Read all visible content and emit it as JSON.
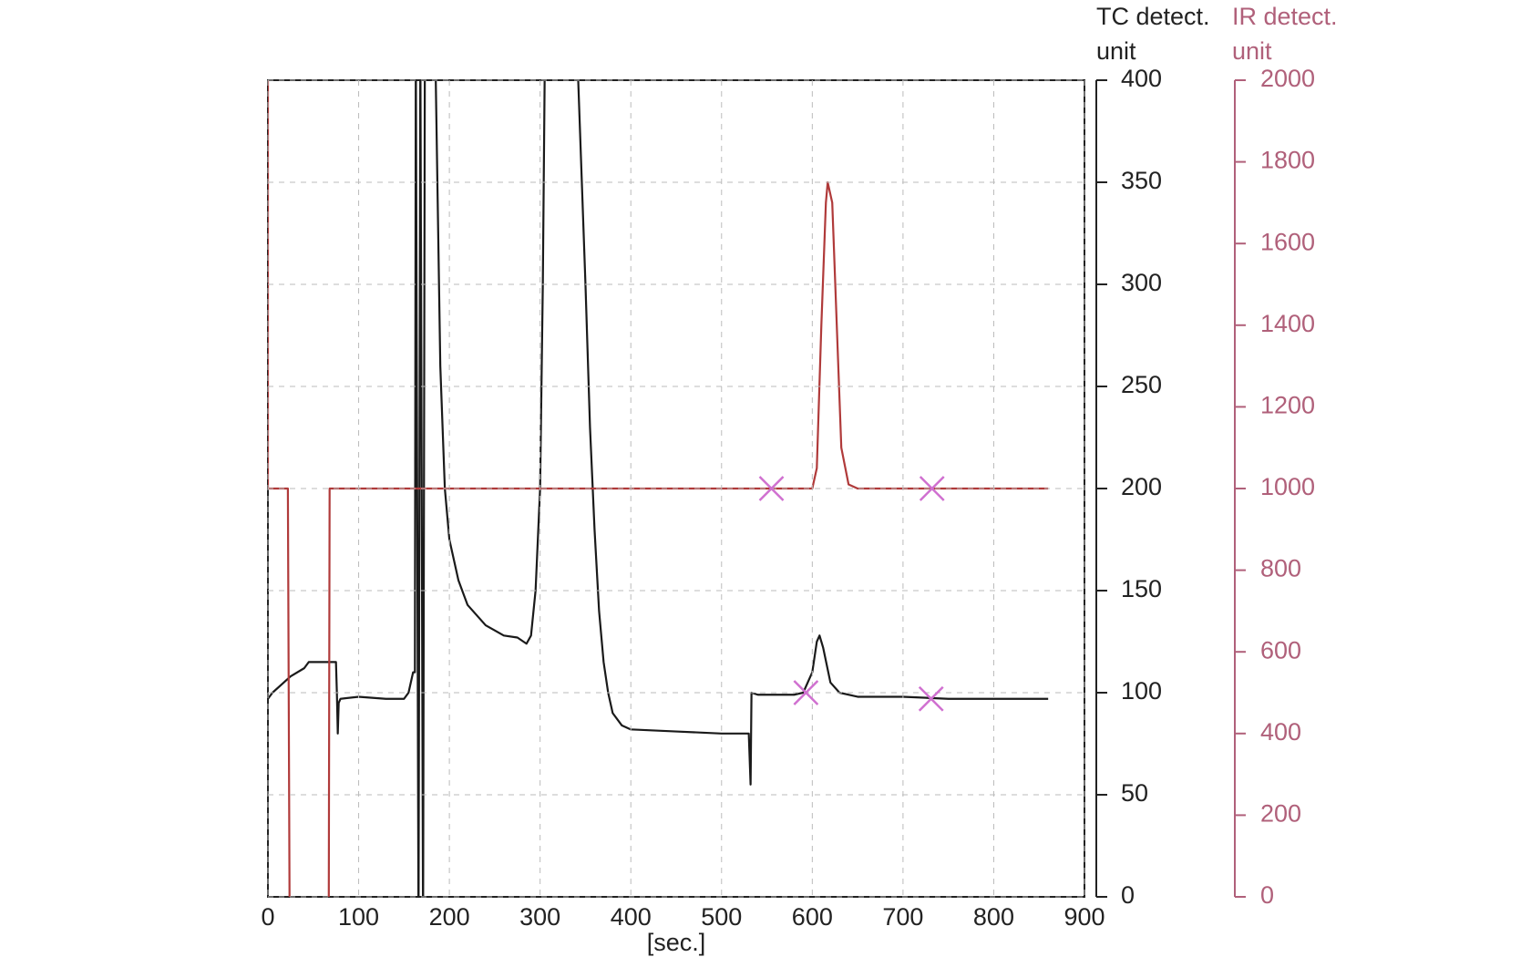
{
  "chart_data": {
    "type": "line",
    "ylabel": [
      "TC detect.",
      "unit"
    ],
    "y2label": [
      "IR detect.",
      "unit"
    ],
    "xlabel": "[sec.]",
    "xlim": [
      0,
      900
    ],
    "xticks": [
      0,
      100,
      200,
      300,
      400,
      500,
      600,
      700,
      800,
      900
    ],
    "ylim": [
      0,
      400
    ],
    "yticks": [
      0,
      50,
      100,
      150,
      200,
      250,
      300,
      350,
      400
    ],
    "y2lim": [
      0,
      2000
    ],
    "y2ticks": [
      0,
      200,
      400,
      600,
      800,
      1000,
      1200,
      1400,
      1600,
      1800,
      2000
    ],
    "grid": true,
    "series": [
      {
        "color": "#1a1a1a",
        "axis": "y",
        "x": [
          0,
          5,
          15,
          25,
          40,
          45,
          75,
          76,
          77,
          78,
          80,
          100,
          130,
          150,
          155,
          160,
          162,
          163,
          166,
          168,
          171,
          173,
          176,
          185,
          190,
          195,
          200,
          210,
          220,
          240,
          260,
          275,
          285,
          290,
          295,
          300,
          303,
          305,
          310,
          340,
          342,
          350,
          355,
          360,
          365,
          370,
          375,
          380,
          390,
          400,
          450,
          500,
          530,
          532,
          533,
          540,
          580,
          590,
          600,
          605,
          608,
          612,
          620,
          630,
          650,
          700,
          750,
          860
        ],
        "values": [
          97,
          100,
          104,
          108,
          112,
          115,
          115,
          100,
          80,
          95,
          97,
          98,
          97,
          97,
          100,
          110,
          110,
          420,
          -20,
          420,
          -20,
          420,
          420,
          400,
          260,
          200,
          175,
          155,
          143,
          133,
          128,
          127,
          124,
          128,
          150,
          200,
          300,
          400,
          420,
          420,
          400,
          300,
          230,
          180,
          140,
          115,
          100,
          90,
          84,
          82,
          81,
          80,
          80,
          55,
          100,
          99,
          99,
          100,
          110,
          125,
          128,
          122,
          105,
          100,
          98,
          98,
          97,
          97
        ]
      },
      {
        "color": "#b03a3a",
        "axis": "y2",
        "x": [
          0,
          0,
          20,
          22,
          24,
          67,
          68,
          200,
          400,
          600,
          605,
          610,
          615,
          617,
          622,
          627,
          632,
          640,
          650,
          860
        ],
        "values": [
          2000,
          1000,
          1000,
          1000,
          -100,
          -100,
          1000,
          1000,
          1000,
          1000,
          1050,
          1400,
          1700,
          1750,
          1700,
          1400,
          1100,
          1010,
          1000,
          1000
        ]
      }
    ],
    "markers": {
      "color": "#d070d0",
      "points": [
        {
          "axis": "y2",
          "x": 555,
          "y": 1000
        },
        {
          "axis": "y2",
          "x": 732,
          "y": 1000
        },
        {
          "axis": "y",
          "x": 593,
          "y": 100
        },
        {
          "axis": "y",
          "x": 731,
          "y": 97
        }
      ]
    }
  }
}
